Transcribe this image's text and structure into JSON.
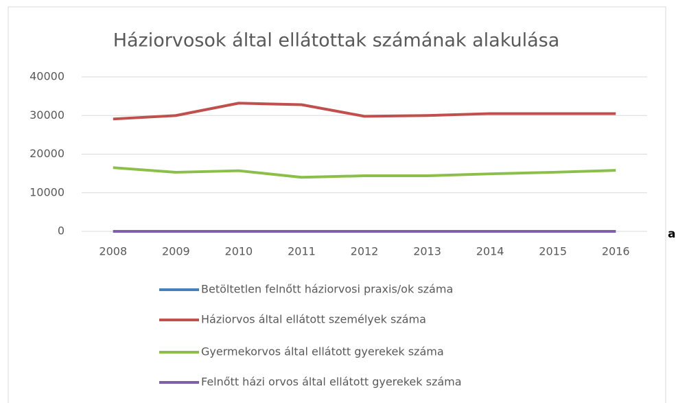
{
  "chart_data": {
    "type": "line",
    "title": "Háziorvosok által ellátottak számának alakulása",
    "categories": [
      "2008",
      "2009",
      "2010",
      "2011",
      "2012",
      "2013",
      "2014",
      "2015",
      "2016"
    ],
    "series": [
      {
        "name": "Betöltetlen felnőtt háziorvosi praxis/ok száma",
        "color": "#4a7ebb",
        "values": [
          0,
          0,
          0,
          0,
          0,
          0,
          0,
          0,
          0
        ]
      },
      {
        "name": "Háziorvos által ellátott személyek száma",
        "color": "#c0504d",
        "values": [
          29100,
          30000,
          33200,
          32800,
          29800,
          30000,
          30500,
          30500,
          30500
        ]
      },
      {
        "name": "Gyermekorvos által ellátott gyerekek száma",
        "color": "#8cbf4a",
        "values": [
          16500,
          15300,
          15700,
          14000,
          14400,
          14400,
          14900,
          15300,
          15800
        ]
      },
      {
        "name": "Felnőtt házi orvos által ellátott gyerekek száma",
        "color": "#7f5fa6",
        "values": [
          0,
          0,
          0,
          0,
          0,
          0,
          0,
          0,
          0
        ]
      }
    ],
    "ylim": [
      0,
      40000
    ],
    "yticks": [
      0,
      10000,
      20000,
      30000,
      40000
    ],
    "grid": true,
    "annotation": "a"
  }
}
